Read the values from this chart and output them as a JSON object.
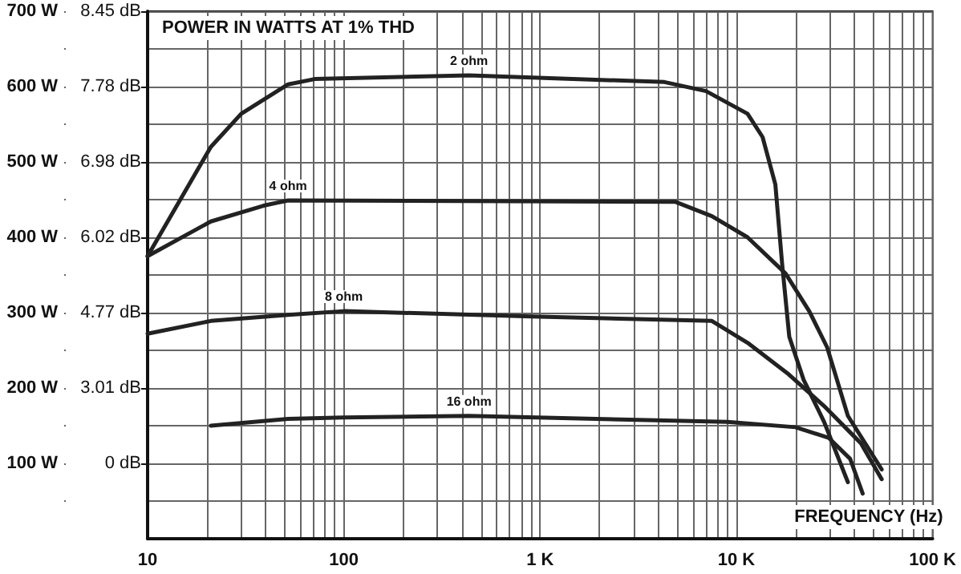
{
  "chart_data": {
    "type": "line",
    "title": "POWER IN WATTS AT 1% THD",
    "xlabel": "FREQUENCY (Hz)",
    "log": "x",
    "grid": true,
    "marker": "none",
    "line_style": "solid",
    "xlim": [
      10,
      100000
    ],
    "xticks": [
      10,
      {
        "value": 20,
        "label": null
      },
      {
        "value": 30,
        "label": null
      },
      {
        "value": 40,
        "label": null
      },
      {
        "value": 50,
        "label": null
      },
      {
        "value": 60,
        "label": null
      },
      {
        "value": 70,
        "label": null
      },
      {
        "value": 80,
        "label": null
      },
      {
        "value": 90,
        "label": null
      },
      100,
      {
        "value": 200,
        "label": null
      },
      {
        "value": 300,
        "label": null
      },
      {
        "value": 400,
        "label": null
      },
      {
        "value": 500,
        "label": null
      },
      {
        "value": 600,
        "label": null
      },
      {
        "value": 700,
        "label": null
      },
      {
        "value": 800,
        "label": null
      },
      {
        "value": 900,
        "label": null
      },
      {
        "value": 1000,
        "label": "1 K"
      },
      {
        "value": 2000,
        "label": null
      },
      {
        "value": 3000,
        "label": null
      },
      {
        "value": 4000,
        "label": null
      },
      {
        "value": 5000,
        "label": null
      },
      {
        "value": 6000,
        "label": null
      },
      {
        "value": 7000,
        "label": null
      },
      {
        "value": 8000,
        "label": null
      },
      {
        "value": 9000,
        "label": null
      },
      {
        "value": 10000,
        "label": "10 K"
      },
      {
        "value": 20000,
        "label": null
      },
      {
        "value": 30000,
        "label": null
      },
      {
        "value": 40000,
        "label": null
      },
      {
        "value": 50000,
        "label": null
      },
      {
        "value": 60000,
        "label": null
      },
      {
        "value": 70000,
        "label": null
      },
      {
        "value": 80000,
        "label": null
      },
      {
        "value": 90000,
        "label": null
      },
      {
        "value": 100000,
        "label": "100 K"
      }
    ],
    "ylim": [
      0,
      700
    ],
    "yticks": [
      {
        "value": 50,
        "label": null
      },
      {
        "value": 100,
        "label": "100 W"
      },
      {
        "value": 150,
        "label": null
      },
      {
        "value": 200,
        "label": "200 W"
      },
      {
        "value": 250,
        "label": null
      },
      {
        "value": 300,
        "label": "300 W"
      },
      {
        "value": 350,
        "label": null
      },
      {
        "value": 400,
        "label": "400 W"
      },
      {
        "value": 450,
        "label": null
      },
      {
        "value": 500,
        "label": "500 W"
      },
      {
        "value": 550,
        "label": null
      },
      {
        "value": 600,
        "label": "600 W"
      },
      {
        "value": 650,
        "label": null
      },
      {
        "value": 700,
        "label": "700 W"
      }
    ],
    "y2_categories": [
      "8.45 dB",
      null,
      "7.78 dB",
      null,
      "6.98 dB",
      null,
      "6.02 dB",
      null,
      "4.77 dB",
      null,
      "3.01 dB",
      null,
      "0 dB",
      null,
      null
    ],
    "series": [
      {
        "name": "2 ohm",
        "color": "#222222",
        "x": [
          10,
          21,
          30,
          52,
          71,
          434,
          4300,
          7000,
          11400,
          13600,
          15800,
          17100,
          18600,
          22000,
          28000,
          37000
        ],
        "values": [
          375,
          520,
          564,
          603,
          610,
          615,
          606,
          594,
          564,
          533,
          470,
          365,
          268,
          211,
          155,
          75
        ]
      },
      {
        "name": "4 ohm",
        "color": "#222222",
        "x": [
          10,
          21,
          39,
          52,
          4900,
          7500,
          11400,
          17800,
          23500,
          29000,
          37000,
          55000
        ],
        "values": [
          375,
          421,
          442,
          449,
          447,
          428,
          400,
          352,
          302,
          254,
          163,
          92
        ]
      },
      {
        "name": "8 ohm",
        "color": "#222222",
        "x": [
          10,
          21,
          52,
          100,
          900,
          7500,
          11400,
          18500,
          28000,
          43000,
          55000
        ],
        "values": [
          272,
          289,
          297,
          302,
          295,
          289,
          260,
          218,
          176,
          127,
          79
        ]
      },
      {
        "name": "16 ohm",
        "color": "#222222",
        "x": [
          21,
          52,
          100,
          434,
          9000,
          20000,
          29500,
          38000,
          44000
        ],
        "values": [
          150,
          159,
          161,
          163,
          155,
          148,
          134,
          106,
          60
        ]
      }
    ]
  }
}
